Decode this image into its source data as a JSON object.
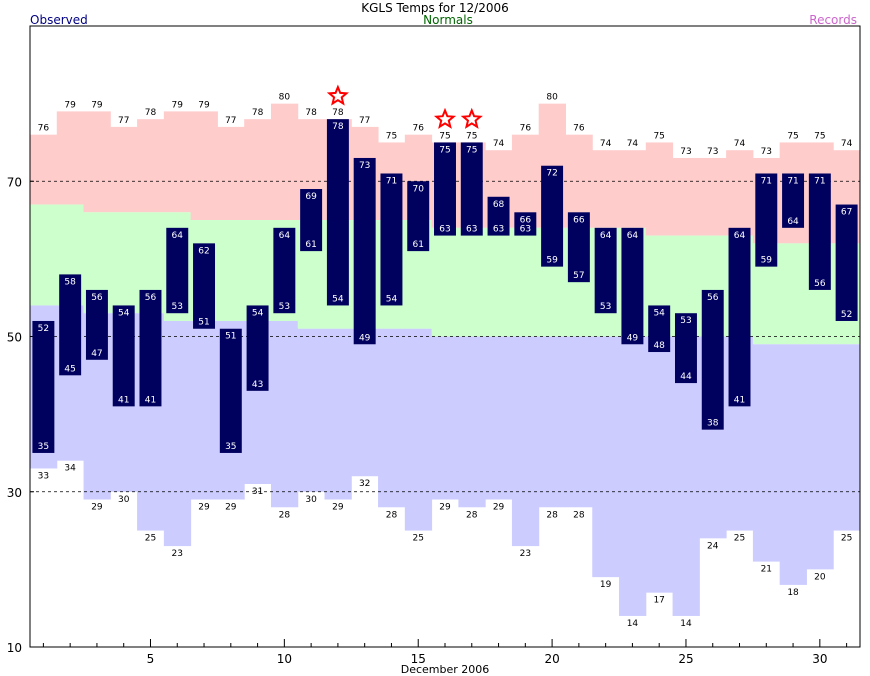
{
  "header": {
    "title": "KGLS Temps for 12/2006",
    "legend_observed": "Observed",
    "legend_normals": "Normals",
    "legend_records": "Records"
  },
  "colors": {
    "observed_bar": "#00005f",
    "record_high_fill": "#ffcccc",
    "normal_fill": "#ccffcc",
    "record_low_fill": "#ccccff",
    "observed_legend": "#000080",
    "normals_legend": "#006600",
    "records_legend": "#cc66cc",
    "record_star": "#ff0000"
  },
  "chart_data": {
    "type": "bar",
    "xlabel": "December 2006",
    "ylabel": "",
    "xlim": [
      0.5,
      31.5
    ],
    "ylim": [
      10,
      90
    ],
    "y_ticks": [
      10,
      30,
      50,
      70
    ],
    "x_ticks": [
      5,
      10,
      15,
      20,
      25,
      30
    ],
    "reference_lines": [
      30,
      50,
      70
    ],
    "days": [
      1,
      2,
      3,
      4,
      5,
      6,
      7,
      8,
      9,
      10,
      11,
      12,
      13,
      14,
      15,
      16,
      17,
      18,
      19,
      20,
      21,
      22,
      23,
      24,
      25,
      26,
      27,
      28,
      29,
      30,
      31
    ],
    "observed_high": [
      52,
      58,
      56,
      54,
      56,
      64,
      62,
      51,
      54,
      64,
      69,
      78,
      73,
      71,
      70,
      75,
      75,
      68,
      66,
      72,
      66,
      64,
      64,
      54,
      53,
      56,
      64,
      71,
      71,
      71,
      67
    ],
    "observed_low": [
      35,
      45,
      47,
      41,
      41,
      53,
      51,
      35,
      43,
      53,
      61,
      54,
      49,
      54,
      61,
      63,
      63,
      63,
      63,
      59,
      57,
      53,
      49,
      48,
      44,
      38,
      41,
      59,
      64,
      56,
      52
    ],
    "record_high": [
      76,
      79,
      79,
      77,
      78,
      79,
      79,
      77,
      78,
      80,
      78,
      78,
      77,
      75,
      76,
      75,
      75,
      74,
      76,
      80,
      76,
      74,
      74,
      75,
      73,
      73,
      74,
      73,
      75,
      75,
      74
    ],
    "record_low": [
      33,
      34,
      29,
      30,
      25,
      23,
      29,
      29,
      31,
      28,
      30,
      29,
      32,
      28,
      25,
      29,
      28,
      29,
      23,
      28,
      28,
      19,
      14,
      17,
      14,
      24,
      25,
      21,
      18,
      20,
      25
    ],
    "normal_high": [
      67,
      67,
      66,
      66,
      66,
      66,
      65,
      65,
      65,
      65,
      65,
      65,
      65,
      65,
      65,
      64,
      64,
      64,
      64,
      64,
      64,
      64,
      64,
      63,
      63,
      63,
      63,
      62,
      62,
      62,
      62
    ],
    "normal_low": [
      54,
      54,
      53,
      53,
      53,
      52,
      52,
      52,
      52,
      52,
      51,
      51,
      51,
      51,
      51,
      50,
      50,
      50,
      50,
      50,
      50,
      50,
      50,
      50,
      50,
      50,
      50,
      49,
      49,
      49,
      49
    ],
    "record_set_days": [
      12,
      16,
      17
    ]
  }
}
